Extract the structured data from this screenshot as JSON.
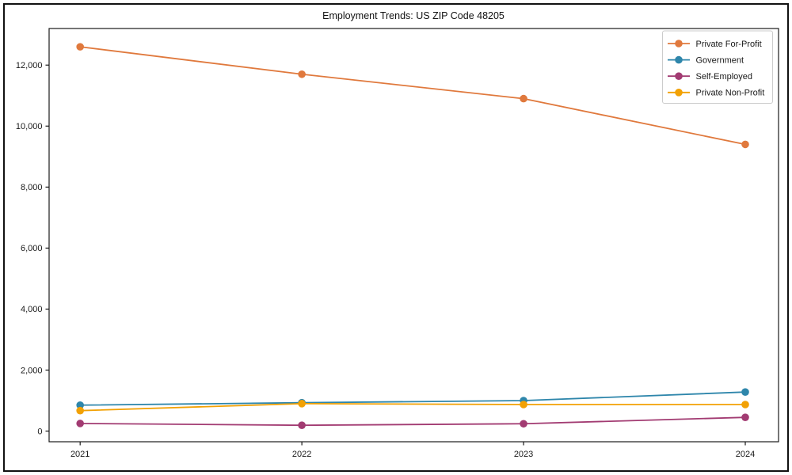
{
  "chart": {
    "title": "Employment Trends: US ZIP Code 48205"
  },
  "chart_data": {
    "type": "line",
    "title": "Employment Trends: US ZIP Code 48205",
    "xlabel": "",
    "ylabel": "",
    "x": [
      2021,
      2022,
      2023,
      2024
    ],
    "xtick_labels": [
      "2021",
      "2022",
      "2023",
      "2024"
    ],
    "ytick_values": [
      0,
      2000,
      4000,
      6000,
      8000,
      10000,
      12000
    ],
    "ytick_labels": [
      "0",
      "2,000",
      "4,000",
      "6,000",
      "8,000",
      "10,000",
      "12,000"
    ],
    "xlim": [
      2020.86,
      2024.15
    ],
    "ylim": [
      -350,
      13200
    ],
    "grid": false,
    "legend_position": "upper right",
    "marker": "circle",
    "text_color": "#1a1a1a",
    "series": [
      {
        "name": "Private For-Profit",
        "color": "#E0793D",
        "values": [
          12600,
          11700,
          10900,
          9400
        ]
      },
      {
        "name": "Government",
        "color": "#2E86AB",
        "values": [
          850,
          930,
          1000,
          1280
        ]
      },
      {
        "name": "Self-Employed",
        "color": "#A23B72",
        "values": [
          250,
          190,
          240,
          450
        ]
      },
      {
        "name": "Private Non-Profit",
        "color": "#F2A104",
        "values": [
          670,
          900,
          870,
          870
        ]
      }
    ]
  }
}
